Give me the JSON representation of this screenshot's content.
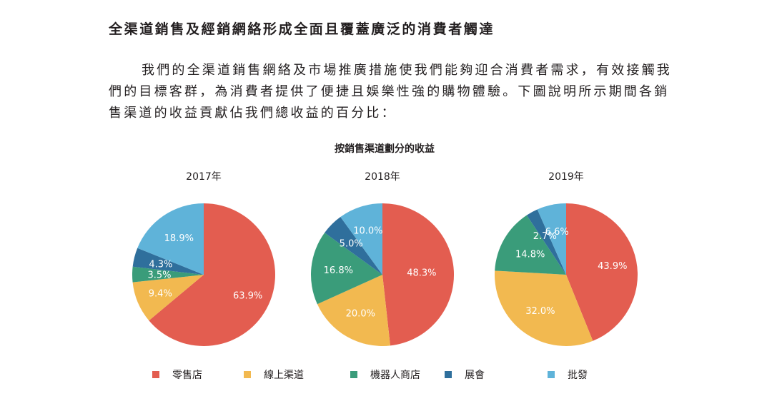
{
  "heading": "全渠道銷售及經銷網絡形成全面且覆蓋廣泛的消費者觸達",
  "paragraph": "我們的全渠道銷售網絡及市場推廣措施使我們能夠迎合消費者需求，有效接觸我們的目標客群，為消費者提供了便捷且娛樂性強的購物體驗。下圖說明所示期間各銷售渠道的收益貢獻佔我們總收益的百分比：",
  "chart_data": {
    "type": "pie",
    "title": "按銷售渠道劃分的收益",
    "series_names": [
      "零售店",
      "線上渠道",
      "機器人商店",
      "展會",
      "批發"
    ],
    "colors": [
      "#e35d50",
      "#f2b950",
      "#3a9c7a",
      "#2f6f9c",
      "#5fb3d9"
    ],
    "charts": [
      {
        "year_label": "2017年",
        "values": [
          63.9,
          9.4,
          3.5,
          4.3,
          18.9
        ],
        "labels": [
          "63.9%",
          "9.4%",
          "3.5%",
          "4.3%",
          "18.9%"
        ]
      },
      {
        "year_label": "2018年",
        "values": [
          48.3,
          20.0,
          16.8,
          5.0,
          10.0
        ],
        "labels": [
          "48.3%",
          "20.0%",
          "16.8%",
          "5.0%",
          "10.0%"
        ]
      },
      {
        "year_label": "2019年",
        "values": [
          43.9,
          32.0,
          14.8,
          2.7,
          6.6
        ],
        "labels": [
          "43.9%",
          "32.0%",
          "14.8%",
          "2.7%",
          "6.6%"
        ]
      }
    ],
    "legend": [
      "零售店",
      "線上渠道",
      "機器人商店",
      "展會",
      "批發"
    ],
    "legend_position": "bottom"
  }
}
